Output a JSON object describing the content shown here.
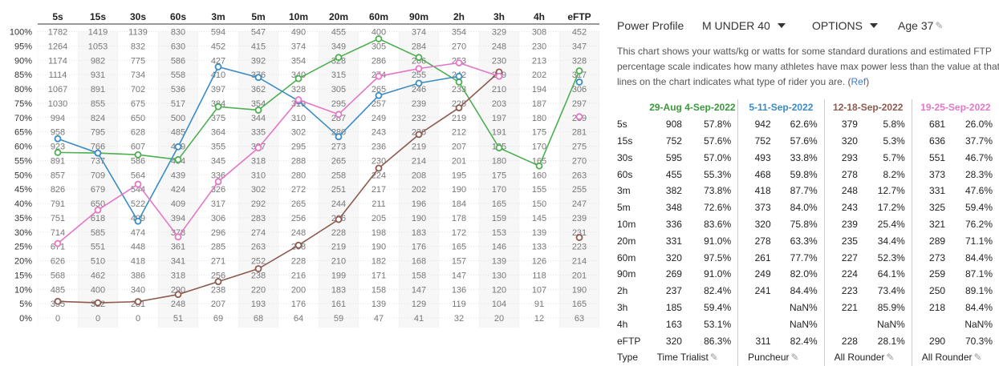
{
  "chart_data": {
    "type": "line",
    "categories": [
      "5s",
      "15s",
      "30s",
      "60s",
      "3m",
      "5m",
      "10m",
      "20m",
      "60m",
      "90m",
      "2h",
      "3h",
      "4h",
      "eFTP"
    ],
    "y_ticks": [
      "100%",
      "95%",
      "90%",
      "85%",
      "80%",
      "75%",
      "70%",
      "65%",
      "60%",
      "55%",
      "50%",
      "45%",
      "40%",
      "35%",
      "30%",
      "25%",
      "20%",
      "15%",
      "10%",
      "5%",
      "0%"
    ],
    "ylim": [
      0,
      100
    ],
    "grid_values": [
      [
        "1782",
        "1419",
        "1139",
        "830",
        "594",
        "547",
        "490",
        "455",
        "400",
        "374",
        "354",
        "329",
        "308",
        "452"
      ],
      [
        "1264",
        "1053",
        "832",
        "630",
        "452",
        "415",
        "374",
        "349",
        "305",
        "284",
        "270",
        "248",
        "230",
        "347"
      ],
      [
        "1174",
        "982",
        "775",
        "586",
        "427",
        "392",
        "354",
        "328",
        "286",
        "266",
        "253",
        "230",
        "213",
        "328"
      ],
      [
        "1114",
        "931",
        "734",
        "558",
        "410",
        "376",
        "340",
        "315",
        "274",
        "255",
        "242",
        "219",
        "202",
        "317"
      ],
      [
        "1067",
        "891",
        "702",
        "536",
        "397",
        "362",
        "328",
        "305",
        "265",
        "246",
        "233",
        "210",
        "194",
        "306"
      ],
      [
        "1030",
        "855",
        "675",
        "517",
        "384",
        "354",
        "319",
        "295",
        "257",
        "239",
        "225",
        "203",
        "187",
        "297"
      ],
      [
        "994",
        "824",
        "650",
        "500",
        "375",
        "344",
        "310",
        "287",
        "249",
        "232",
        "219",
        "197",
        "180",
        "289"
      ],
      [
        "958",
        "795",
        "628",
        "485",
        "364",
        "335",
        "302",
        "280",
        "243",
        "226",
        "212",
        "191",
        "175",
        "281"
      ],
      [
        "923",
        "766",
        "607",
        "469",
        "355",
        "327",
        "295",
        "273",
        "236",
        "219",
        "207",
        "185",
        "170",
        "275"
      ],
      [
        "891",
        "737",
        "586",
        "454",
        "345",
        "318",
        "288",
        "265",
        "230",
        "214",
        "201",
        "180",
        "165",
        "270"
      ],
      [
        "857",
        "709",
        "564",
        "439",
        "336",
        "310",
        "280",
        "258",
        "224",
        "208",
        "195",
        "175",
        "160",
        "263"
      ],
      [
        "826",
        "679",
        "544",
        "424",
        "326",
        "302",
        "272",
        "251",
        "217",
        "202",
        "190",
        "170",
        "155",
        "255"
      ],
      [
        "791",
        "650",
        "522",
        "409",
        "317",
        "292",
        "265",
        "244",
        "211",
        "196",
        "184",
        "165",
        "150",
        "247"
      ],
      [
        "751",
        "618",
        "499",
        "394",
        "306",
        "283",
        "256",
        "236",
        "205",
        "190",
        "178",
        "159",
        "145",
        "239"
      ],
      [
        "714",
        "585",
        "474",
        "378",
        "296",
        "274",
        "248",
        "228",
        "198",
        "183",
        "172",
        "153",
        "139",
        "231"
      ],
      [
        "671",
        "551",
        "448",
        "361",
        "285",
        "263",
        "238",
        "219",
        "190",
        "176",
        "165",
        "146",
        "133",
        "223"
      ],
      [
        "626",
        "510",
        "418",
        "341",
        "271",
        "252",
        "228",
        "210",
        "182",
        "168",
        "157",
        "139",
        "126",
        "214"
      ],
      [
        "568",
        "462",
        "386",
        "318",
        "256",
        "238",
        "216",
        "199",
        "171",
        "158",
        "147",
        "130",
        "118",
        "201"
      ],
      [
        "485",
        "400",
        "340",
        "290",
        "238",
        "220",
        "200",
        "183",
        "158",
        "147",
        "136",
        "120",
        "107",
        "190"
      ],
      [
        "355",
        "312",
        "281",
        "248",
        "207",
        "193",
        "176",
        "161",
        "139",
        "129",
        "119",
        "104",
        "91",
        "165"
      ],
      [
        "0",
        "0",
        "0",
        "51",
        "69",
        "68",
        "64",
        "59",
        "47",
        "41",
        "32",
        "20",
        "12",
        "63"
      ]
    ],
    "series": [
      {
        "name": "29-Aug 4-Sep-2022",
        "color": "#4caf50",
        "values": [
          57.8,
          57.6,
          57.0,
          55.3,
          73.8,
          72.6,
          83.6,
          91.0,
          97.5,
          91.0,
          82.4,
          59.4,
          53.1,
          86.3
        ]
      },
      {
        "name": "5-11-Sep-2022",
        "color": "#3a8cc4",
        "values": [
          62.6,
          57.6,
          33.8,
          59.8,
          87.7,
          84.0,
          75.8,
          63.3,
          77.7,
          82.0,
          84.4,
          null,
          null,
          82.4
        ]
      },
      {
        "name": "12-18-Sep-2022",
        "color": "#8d5a4f",
        "values": [
          5.8,
          5.3,
          5.7,
          8.2,
          12.7,
          17.2,
          25.4,
          34.4,
          52.3,
          64.1,
          73.4,
          85.9,
          null,
          28.1
        ]
      },
      {
        "name": "19-25-Sep-2022",
        "color": "#e377c8",
        "values": [
          26.0,
          37.7,
          46.7,
          28.3,
          47.6,
          59.4,
          76.2,
          71.1,
          84.4,
          87.1,
          89.1,
          84.4,
          null,
          70.3
        ]
      }
    ]
  },
  "profile": {
    "label": "Power Profile",
    "category": "M UNDER 40",
    "options": "OPTIONS",
    "age_label": "Age",
    "age_value": "37",
    "description_main": "This chart shows your watts/kg or watts for some standard durations and estimated FTP percentage scale indicates how many athletes have max power less than the value at that lines on the chart indicates what type of rider you are. (",
    "description_link": "Ref",
    "description_end": ")"
  },
  "table": {
    "headers": [
      "29-Aug 4-Sep-2022",
      "5-11-Sep-2022",
      "12-18-Sep-2022",
      "19-25-Sep-2022"
    ],
    "header_colors": [
      "#3a9a3a",
      "#3a8cc4",
      "#8d5a4f",
      "#e377c8"
    ],
    "rows": [
      {
        "label": "5s",
        "cells": [
          [
            "908",
            "57.8%"
          ],
          [
            "942",
            "62.6%"
          ],
          [
            "379",
            "5.8%"
          ],
          [
            "681",
            "26.0%"
          ]
        ]
      },
      {
        "label": "15s",
        "cells": [
          [
            "752",
            "57.6%"
          ],
          [
            "752",
            "57.6%"
          ],
          [
            "320",
            "5.3%"
          ],
          [
            "636",
            "37.7%"
          ]
        ]
      },
      {
        "label": "30s",
        "cells": [
          [
            "595",
            "57.0%"
          ],
          [
            "493",
            "33.8%"
          ],
          [
            "293",
            "5.7%"
          ],
          [
            "551",
            "46.7%"
          ]
        ]
      },
      {
        "label": "60s",
        "cells": [
          [
            "455",
            "55.3%"
          ],
          [
            "468",
            "59.8%"
          ],
          [
            "278",
            "8.2%"
          ],
          [
            "373",
            "28.3%"
          ]
        ]
      },
      {
        "label": "3m",
        "cells": [
          [
            "382",
            "73.8%"
          ],
          [
            "418",
            "87.7%"
          ],
          [
            "248",
            "12.7%"
          ],
          [
            "331",
            "47.6%"
          ]
        ]
      },
      {
        "label": "5m",
        "cells": [
          [
            "348",
            "72.6%"
          ],
          [
            "373",
            "84.0%"
          ],
          [
            "243",
            "17.2%"
          ],
          [
            "325",
            "59.4%"
          ]
        ]
      },
      {
        "label": "10m",
        "cells": [
          [
            "336",
            "83.6%"
          ],
          [
            "320",
            "75.8%"
          ],
          [
            "239",
            "25.4%"
          ],
          [
            "321",
            "76.2%"
          ]
        ]
      },
      {
        "label": "20m",
        "cells": [
          [
            "331",
            "91.0%"
          ],
          [
            "278",
            "63.3%"
          ],
          [
            "235",
            "34.4%"
          ],
          [
            "289",
            "71.1%"
          ]
        ]
      },
      {
        "label": "60m",
        "cells": [
          [
            "320",
            "97.5%"
          ],
          [
            "261",
            "77.7%"
          ],
          [
            "227",
            "52.3%"
          ],
          [
            "273",
            "84.4%"
          ]
        ]
      },
      {
        "label": "90m",
        "cells": [
          [
            "269",
            "91.0%"
          ],
          [
            "249",
            "82.0%"
          ],
          [
            "224",
            "64.1%"
          ],
          [
            "259",
            "87.1%"
          ]
        ]
      },
      {
        "label": "2h",
        "cells": [
          [
            "237",
            "82.4%"
          ],
          [
            "241",
            "84.4%"
          ],
          [
            "223",
            "73.4%"
          ],
          [
            "250",
            "89.1%"
          ]
        ]
      },
      {
        "label": "3h",
        "cells": [
          [
            "185",
            "59.4%"
          ],
          [
            "",
            "NaN%"
          ],
          [
            "221",
            "85.9%"
          ],
          [
            "218",
            "84.4%"
          ]
        ]
      },
      {
        "label": "4h",
        "cells": [
          [
            "163",
            "53.1%"
          ],
          [
            "",
            "NaN%"
          ],
          [
            "",
            "NaN%"
          ],
          [
            "",
            "NaN%"
          ]
        ]
      },
      {
        "label": "eFTP",
        "cells": [
          [
            "320",
            "86.3%"
          ],
          [
            "311",
            "82.4%"
          ],
          [
            "228",
            "28.1%"
          ],
          [
            "290",
            "70.3%"
          ]
        ]
      }
    ],
    "type_label": "Type",
    "types": [
      "Time Trialist",
      "Puncheur",
      "All Rounder",
      "All Rounder"
    ]
  }
}
